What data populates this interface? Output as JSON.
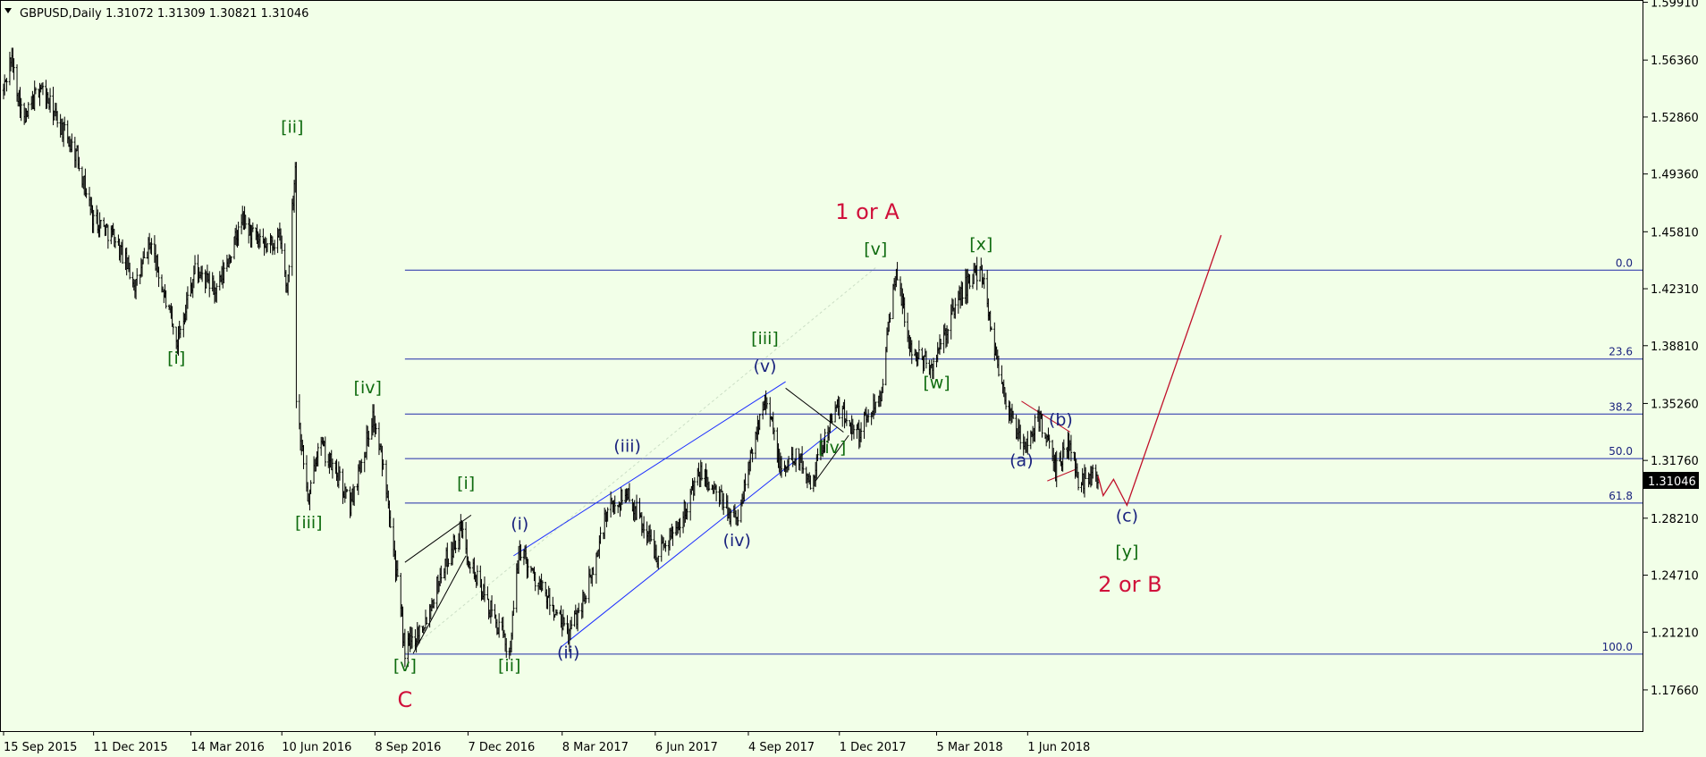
{
  "header": {
    "symbol": "GBPUSD,Daily",
    "ohlc": "1.31072 1.31309 1.30821 1.31046",
    "arrow_icon": "triangle-down-icon"
  },
  "price_tag": "1.31046",
  "colors": {
    "background": "#f2ffe8",
    "candles": "#000000",
    "fib": "#1f2aa8",
    "green_wave": "#0f6b0f",
    "navy_wave": "#1a237e",
    "red_wave": "#d0103a",
    "projection": "#c0102a",
    "price_tag_bg": "#000000",
    "price_tag_fg": "#ffffff"
  },
  "chart_data": {
    "type": "candlestick",
    "symbol": "GBPUSD",
    "timeframe": "Daily",
    "x_date_range": [
      "2015-09-15",
      "2018-08-08"
    ],
    "ylim": [
      1.1513,
      1.6005
    ],
    "y_ticks": [
      "1.59910",
      "1.56360",
      "1.52860",
      "1.49360",
      "1.45810",
      "1.42310",
      "1.38810",
      "1.35260",
      "1.31760",
      "1.28210",
      "1.24710",
      "1.21210",
      "1.17660"
    ],
    "x_ticks": [
      "15 Sep 2015",
      "11 Dec 2015",
      "14 Mar 2016",
      "10 Jun 2016",
      "8 Sep 2016",
      "7 Dec 2016",
      "8 Mar 2017",
      "6 Jun 2017",
      "4 Sep 2017",
      "1 Dec 2017",
      "5 Mar 2018",
      "1 Jun 2018"
    ],
    "grid": false,
    "price_path": [
      [
        "2015-09-15",
        1.545
      ],
      [
        "2015-09-22",
        1.565
      ],
      [
        "2015-10-05",
        1.525
      ],
      [
        "2015-10-20",
        1.548
      ],
      [
        "2015-11-10",
        1.522
      ],
      [
        "2015-11-25",
        1.505
      ],
      [
        "2015-12-10",
        1.468
      ],
      [
        "2015-12-31",
        1.455
      ],
      [
        "2016-01-21",
        1.425
      ],
      [
        "2016-02-04",
        1.452
      ],
      [
        "2016-02-29",
        1.39
      ],
      [
        "2016-03-18",
        1.435
      ],
      [
        "2016-04-08",
        1.421
      ],
      [
        "2016-05-03",
        1.465
      ],
      [
        "2016-05-23",
        1.447
      ],
      [
        "2016-06-08",
        1.455
      ],
      [
        "2016-06-15",
        1.422
      ],
      [
        "2016-06-23",
        1.5
      ],
      [
        "2016-06-24",
        1.355
      ],
      [
        "2016-07-06",
        1.29
      ],
      [
        "2016-07-15",
        1.33
      ],
      [
        "2016-08-05",
        1.305
      ],
      [
        "2016-08-15",
        1.29
      ],
      [
        "2016-09-06",
        1.345
      ],
      [
        "2016-09-20",
        1.3
      ],
      [
        "2016-10-07",
        1.2
      ],
      [
        "2016-10-27",
        1.22
      ],
      [
        "2016-11-15",
        1.255
      ],
      [
        "2016-11-30",
        1.275
      ],
      [
        "2016-12-15",
        1.245
      ],
      [
        "2017-01-16",
        1.2
      ],
      [
        "2017-01-26",
        1.265
      ],
      [
        "2017-02-10",
        1.245
      ],
      [
        "2017-03-14",
        1.21
      ],
      [
        "2017-04-05",
        1.245
      ],
      [
        "2017-04-20",
        1.285
      ],
      [
        "2017-05-10",
        1.298
      ],
      [
        "2017-06-08",
        1.26
      ],
      [
        "2017-06-25",
        1.275
      ],
      [
        "2017-07-20",
        1.31
      ],
      [
        "2017-08-24",
        1.28
      ],
      [
        "2017-09-20",
        1.36
      ],
      [
        "2017-10-06",
        1.31
      ],
      [
        "2017-10-20",
        1.322
      ],
      [
        "2017-11-03",
        1.305
      ],
      [
        "2017-11-27",
        1.35
      ],
      [
        "2017-12-20",
        1.335
      ],
      [
        "2018-01-10",
        1.36
      ],
      [
        "2018-01-25",
        1.435
      ],
      [
        "2018-02-08",
        1.385
      ],
      [
        "2018-03-01",
        1.375
      ],
      [
        "2018-03-28",
        1.42
      ],
      [
        "2018-04-17",
        1.437
      ],
      [
        "2018-05-02",
        1.38
      ],
      [
        "2018-05-15",
        1.345
      ],
      [
        "2018-05-29",
        1.325
      ],
      [
        "2018-06-13",
        1.345
      ],
      [
        "2018-06-28",
        1.31
      ],
      [
        "2018-07-10",
        1.33
      ],
      [
        "2018-07-20",
        1.305
      ],
      [
        "2018-08-08",
        1.31
      ]
    ],
    "fibonacci": [
      {
        "level": "0.0",
        "price": 1.4345
      },
      {
        "level": "23.6",
        "price": 1.3799
      },
      {
        "level": "38.2",
        "price": 1.3461
      },
      {
        "level": "50.0",
        "price": 1.3187
      },
      {
        "level": "61.8",
        "price": 1.2914
      },
      {
        "level": "100.0",
        "price": 1.1986
      }
    ],
    "projection": [
      [
        "2018-08-08",
        1.308
      ],
      [
        "2018-08-13",
        1.296
      ],
      [
        "2018-08-23",
        1.306
      ],
      [
        "2018-09-05",
        1.29
      ],
      [
        "2018-12-05",
        1.456
      ]
    ],
    "wave_labels": [
      {
        "text": "[i]",
        "color": "green",
        "date": "2016-02-29",
        "price": 1.377
      },
      {
        "text": "[ii]",
        "color": "green",
        "date": "2016-06-20",
        "price": 1.519
      },
      {
        "text": "[iii]",
        "color": "green",
        "date": "2016-07-06",
        "price": 1.276
      },
      {
        "text": "[iv]",
        "color": "green",
        "date": "2016-09-01",
        "price": 1.359
      },
      {
        "text": "[v]",
        "color": "green",
        "date": "2016-10-07",
        "price": 1.188
      },
      {
        "text": "C",
        "color": "red",
        "date": "2016-10-07",
        "price": 1.166
      },
      {
        "text": "[i]",
        "color": "green",
        "date": "2016-12-05",
        "price": 1.3
      },
      {
        "text": "[ii]",
        "color": "green",
        "date": "2017-01-16",
        "price": 1.188
      },
      {
        "text": "(i)",
        "color": "navy",
        "date": "2017-01-26",
        "price": 1.275
      },
      {
        "text": "(ii)",
        "color": "navy",
        "date": "2017-03-14",
        "price": 1.196
      },
      {
        "text": "(iii)",
        "color": "navy",
        "date": "2017-05-10",
        "price": 1.323
      },
      {
        "text": "(iv)",
        "color": "navy",
        "date": "2017-08-24",
        "price": 1.265
      },
      {
        "text": "(v)",
        "color": "navy",
        "date": "2017-09-20",
        "price": 1.372
      },
      {
        "text": "[iii]",
        "color": "green",
        "date": "2017-09-20",
        "price": 1.389
      },
      {
        "text": "[iv]",
        "color": "green",
        "date": "2017-11-24",
        "price": 1.322
      },
      {
        "text": "1 or A",
        "color": "red",
        "date": "2017-12-28",
        "price": 1.466
      },
      {
        "text": "[v]",
        "color": "green",
        "date": "2018-01-05",
        "price": 1.444
      },
      {
        "text": "[w]",
        "color": "green",
        "date": "2018-03-05",
        "price": 1.362
      },
      {
        "text": "[x]",
        "color": "green",
        "date": "2018-04-17",
        "price": 1.447
      },
      {
        "text": "(a)",
        "color": "navy",
        "date": "2018-05-26",
        "price": 1.314
      },
      {
        "text": "(b)",
        "color": "navy",
        "date": "2018-07-03",
        "price": 1.339
      },
      {
        "text": "(c)",
        "color": "navy",
        "date": "2018-09-05",
        "price": 1.28
      },
      {
        "text": "[y]",
        "color": "green",
        "date": "2018-09-05",
        "price": 1.258
      },
      {
        "text": "2 or B",
        "color": "red",
        "date": "2018-09-08",
        "price": 1.237
      }
    ]
  }
}
